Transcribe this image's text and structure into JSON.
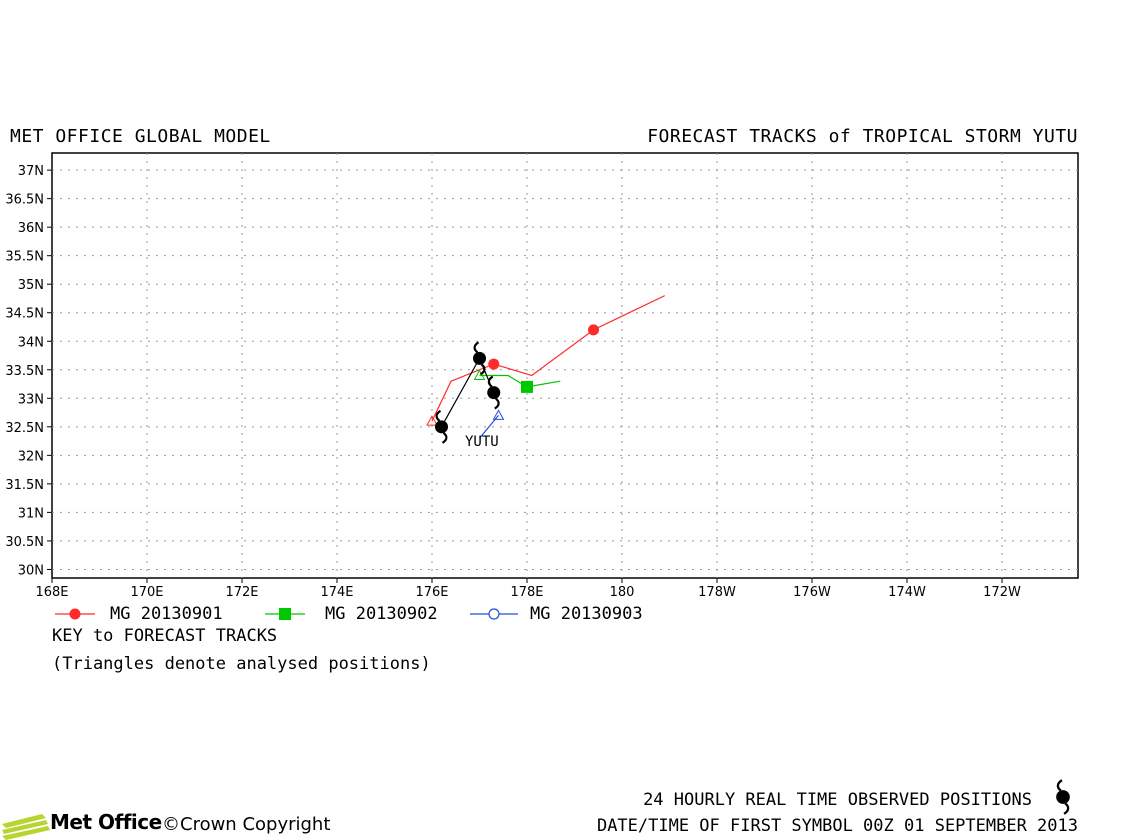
{
  "header": {
    "left_title": "MET OFFICE GLOBAL MODEL",
    "right_title": "FORECAST TRACKS of TROPICAL STORM YUTU"
  },
  "axes": {
    "lat_ticks": [
      "37N",
      "36.5N",
      "36N",
      "35.5N",
      "35N",
      "34.5N",
      "34N",
      "33.5N",
      "33N",
      "32.5N",
      "32N",
      "31.5N",
      "31N",
      "30.5N",
      "30N"
    ],
    "lon_ticks": [
      "168E",
      "170E",
      "172E",
      "174E",
      "176E",
      "178E",
      "180",
      "178W",
      "176W",
      "174W",
      "172W"
    ],
    "lon_range_deg": [
      168,
      189.6
    ],
    "lat_range_deg": [
      29.85,
      37.3
    ]
  },
  "storm_label": "YUTU",
  "colors": {
    "mg_20130901": "#ff2a2a",
    "mg_20130902": "#00c800",
    "mg_20130903": "#2050e0",
    "observed": "#000000",
    "grid": "#999999"
  },
  "chart_data": {
    "type": "line",
    "x_unit": "longitude (degrees east, 180 = dateline)",
    "y_unit": "latitude (degrees north)",
    "series": [
      {
        "name": "MG 20130901",
        "marker": "filled-circle",
        "analysed": [
          176.0,
          32.6
        ],
        "points": [
          [
            176.0,
            32.6
          ],
          [
            176.4,
            33.3
          ],
          [
            177.3,
            33.6
          ],
          [
            178.1,
            33.4
          ],
          [
            179.4,
            34.2
          ],
          [
            180.9,
            34.8
          ]
        ],
        "symbols_24h": [
          [
            177.3,
            33.6
          ],
          [
            179.4,
            34.2
          ]
        ]
      },
      {
        "name": "MG 20130902",
        "marker": "filled-square",
        "analysed": [
          177.0,
          33.4
        ],
        "points": [
          [
            177.0,
            33.4
          ],
          [
            177.6,
            33.4
          ],
          [
            178.0,
            33.2
          ],
          [
            178.7,
            33.3
          ]
        ],
        "symbols_24h": [
          [
            178.0,
            33.2
          ]
        ]
      },
      {
        "name": "MG 20130903",
        "marker": "open-circle",
        "analysed": [
          177.4,
          32.7
        ],
        "points": [
          [
            177.4,
            32.7
          ],
          [
            177.0,
            32.3
          ]
        ],
        "symbols_24h": []
      },
      {
        "name": "observed",
        "marker": "storm-symbol",
        "points": [
          [
            176.2,
            32.5
          ],
          [
            177.0,
            33.7
          ],
          [
            177.3,
            33.1
          ]
        ]
      }
    ]
  },
  "legend": [
    {
      "label": "MG 20130901",
      "marker": "filled-circle",
      "color": "#ff2a2a"
    },
    {
      "label": "MG 20130902",
      "marker": "filled-square",
      "color": "#00c800"
    },
    {
      "label": "MG 20130903",
      "marker": "open-circle",
      "color": "#2050e0"
    }
  ],
  "key": {
    "title": "KEY to FORECAST TRACKS",
    "note": "(Triangles denote analysed positions)"
  },
  "footer": {
    "observed_label": "24 HOURLY REAL TIME OBSERVED POSITIONS",
    "date_label": "DATE/TIME OF FIRST SYMBOL 00Z 01 SEPTEMBER 2013",
    "logo_text": "Met Office",
    "copyright_text": "©Crown Copyright"
  }
}
